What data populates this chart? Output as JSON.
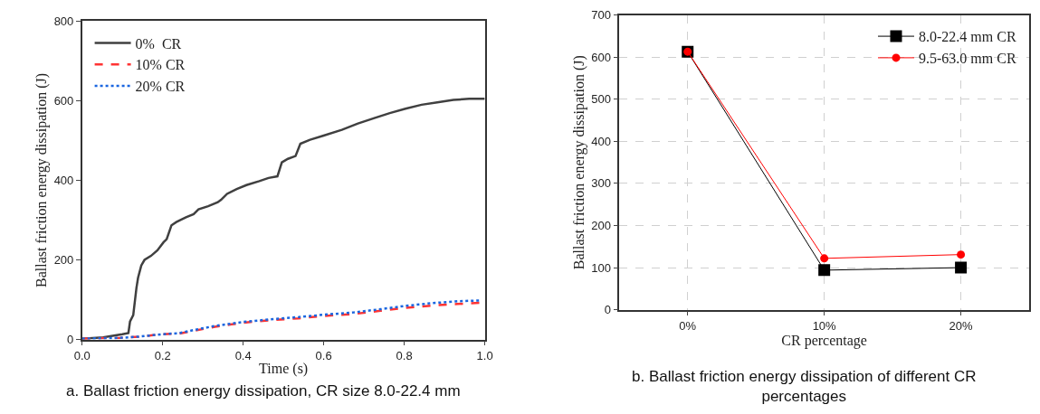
{
  "chart_data": [
    {
      "type": "line",
      "xlabel": "Time (s)",
      "ylabel": "Ballast friction energy dissipation (J)",
      "xlim": [
        0,
        1
      ],
      "xticks": [
        {
          "value": 0,
          "label": "0.0"
        },
        {
          "value": 0.2,
          "label": "0.2"
        },
        {
          "value": 0.4,
          "label": "0.4"
        },
        {
          "value": 0.6,
          "label": "0.6"
        },
        {
          "value": 0.8,
          "label": "0.8"
        },
        {
          "value": 1,
          "label": "1.0"
        }
      ],
      "ylim": [
        0,
        800
      ],
      "yticks": [
        0,
        200,
        400,
        600,
        800
      ],
      "grid": false,
      "legend": "top left",
      "marker": "none",
      "annotations": [
        "a. Ballast friction energy dissipation, CR size 8.0-22.4 mm"
      ],
      "series": [
        {
          "name": "0%  CR",
          "color": "#404040",
          "line_style": "solid",
          "x": [
            0,
            0.052,
            0.1,
            0.115,
            0.119,
            0.127,
            0.135,
            0.139,
            0.147,
            0.155,
            0.171,
            0.187,
            0.202,
            0.21,
            0.222,
            0.234,
            0.258,
            0.277,
            0.289,
            0.313,
            0.337,
            0.345,
            0.36,
            0.384,
            0.408,
            0.44,
            0.463,
            0.485,
            0.496,
            0.511,
            0.53,
            0.542,
            0.566,
            0.598,
            0.645,
            0.685,
            0.724,
            0.764,
            0.803,
            0.843,
            0.882,
            0.922,
            0.961,
            1.0
          ],
          "values": [
            2,
            5,
            13,
            16,
            45,
            61,
            130,
            155,
            186,
            200,
            210,
            224,
            244,
            252,
            287,
            295,
            307,
            315,
            327,
            335,
            345,
            351,
            366,
            378,
            388,
            398,
            406,
            410,
            445,
            454,
            461,
            492,
            502,
            512,
            527,
            543,
            556,
            569,
            580,
            590,
            596,
            602,
            605,
            605
          ]
        },
        {
          "name": "10% CR",
          "color": "#ff3333",
          "line_style": "dashed",
          "x": [
            0,
            0.095,
            0.141,
            0.198,
            0.242,
            0.279,
            0.33,
            0.4,
            0.462,
            0.536,
            0.598,
            0.675,
            0.741,
            0.8,
            0.866,
            0.932,
            0.99
          ],
          "values": [
            2,
            4,
            7,
            13,
            15,
            22,
            32,
            42,
            48,
            53,
            59,
            64,
            72,
            79,
            85,
            89,
            92
          ]
        },
        {
          "name": "20% CR",
          "color": "#1a66e0",
          "line_style": "dotted",
          "x": [
            0,
            0.095,
            0.141,
            0.198,
            0.242,
            0.279,
            0.33,
            0.4,
            0.462,
            0.536,
            0.598,
            0.675,
            0.741,
            0.8,
            0.866,
            0.932,
            0.99
          ],
          "values": [
            2,
            4,
            7,
            13,
            16,
            24,
            34,
            44,
            50,
            56,
            62,
            68,
            76,
            84,
            91,
            96,
            98
          ]
        }
      ]
    },
    {
      "type": "line",
      "xlabel": "CR percentage",
      "ylabel": "Ballast friction energy dissipation (J)",
      "categories": [
        "0%",
        "10%",
        "20%"
      ],
      "ylim": [
        0,
        700
      ],
      "yticks": [
        0,
        100,
        200,
        300,
        400,
        500,
        600,
        700
      ],
      "grid": true,
      "legend": "top right",
      "annotations": [
        "b. Ballast friction energy dissipation of different CR percentages"
      ],
      "series": [
        {
          "name": "8.0-22.4 mm CR",
          "color": "#000000",
          "marker": "square",
          "line_style": "solid",
          "values": [
            613,
            94,
            100
          ]
        },
        {
          "name": "9.5-63.0 mm CR",
          "color": "#ff0000",
          "marker": "circle",
          "line_style": "solid",
          "values": [
            613,
            122,
            131
          ]
        }
      ]
    }
  ]
}
